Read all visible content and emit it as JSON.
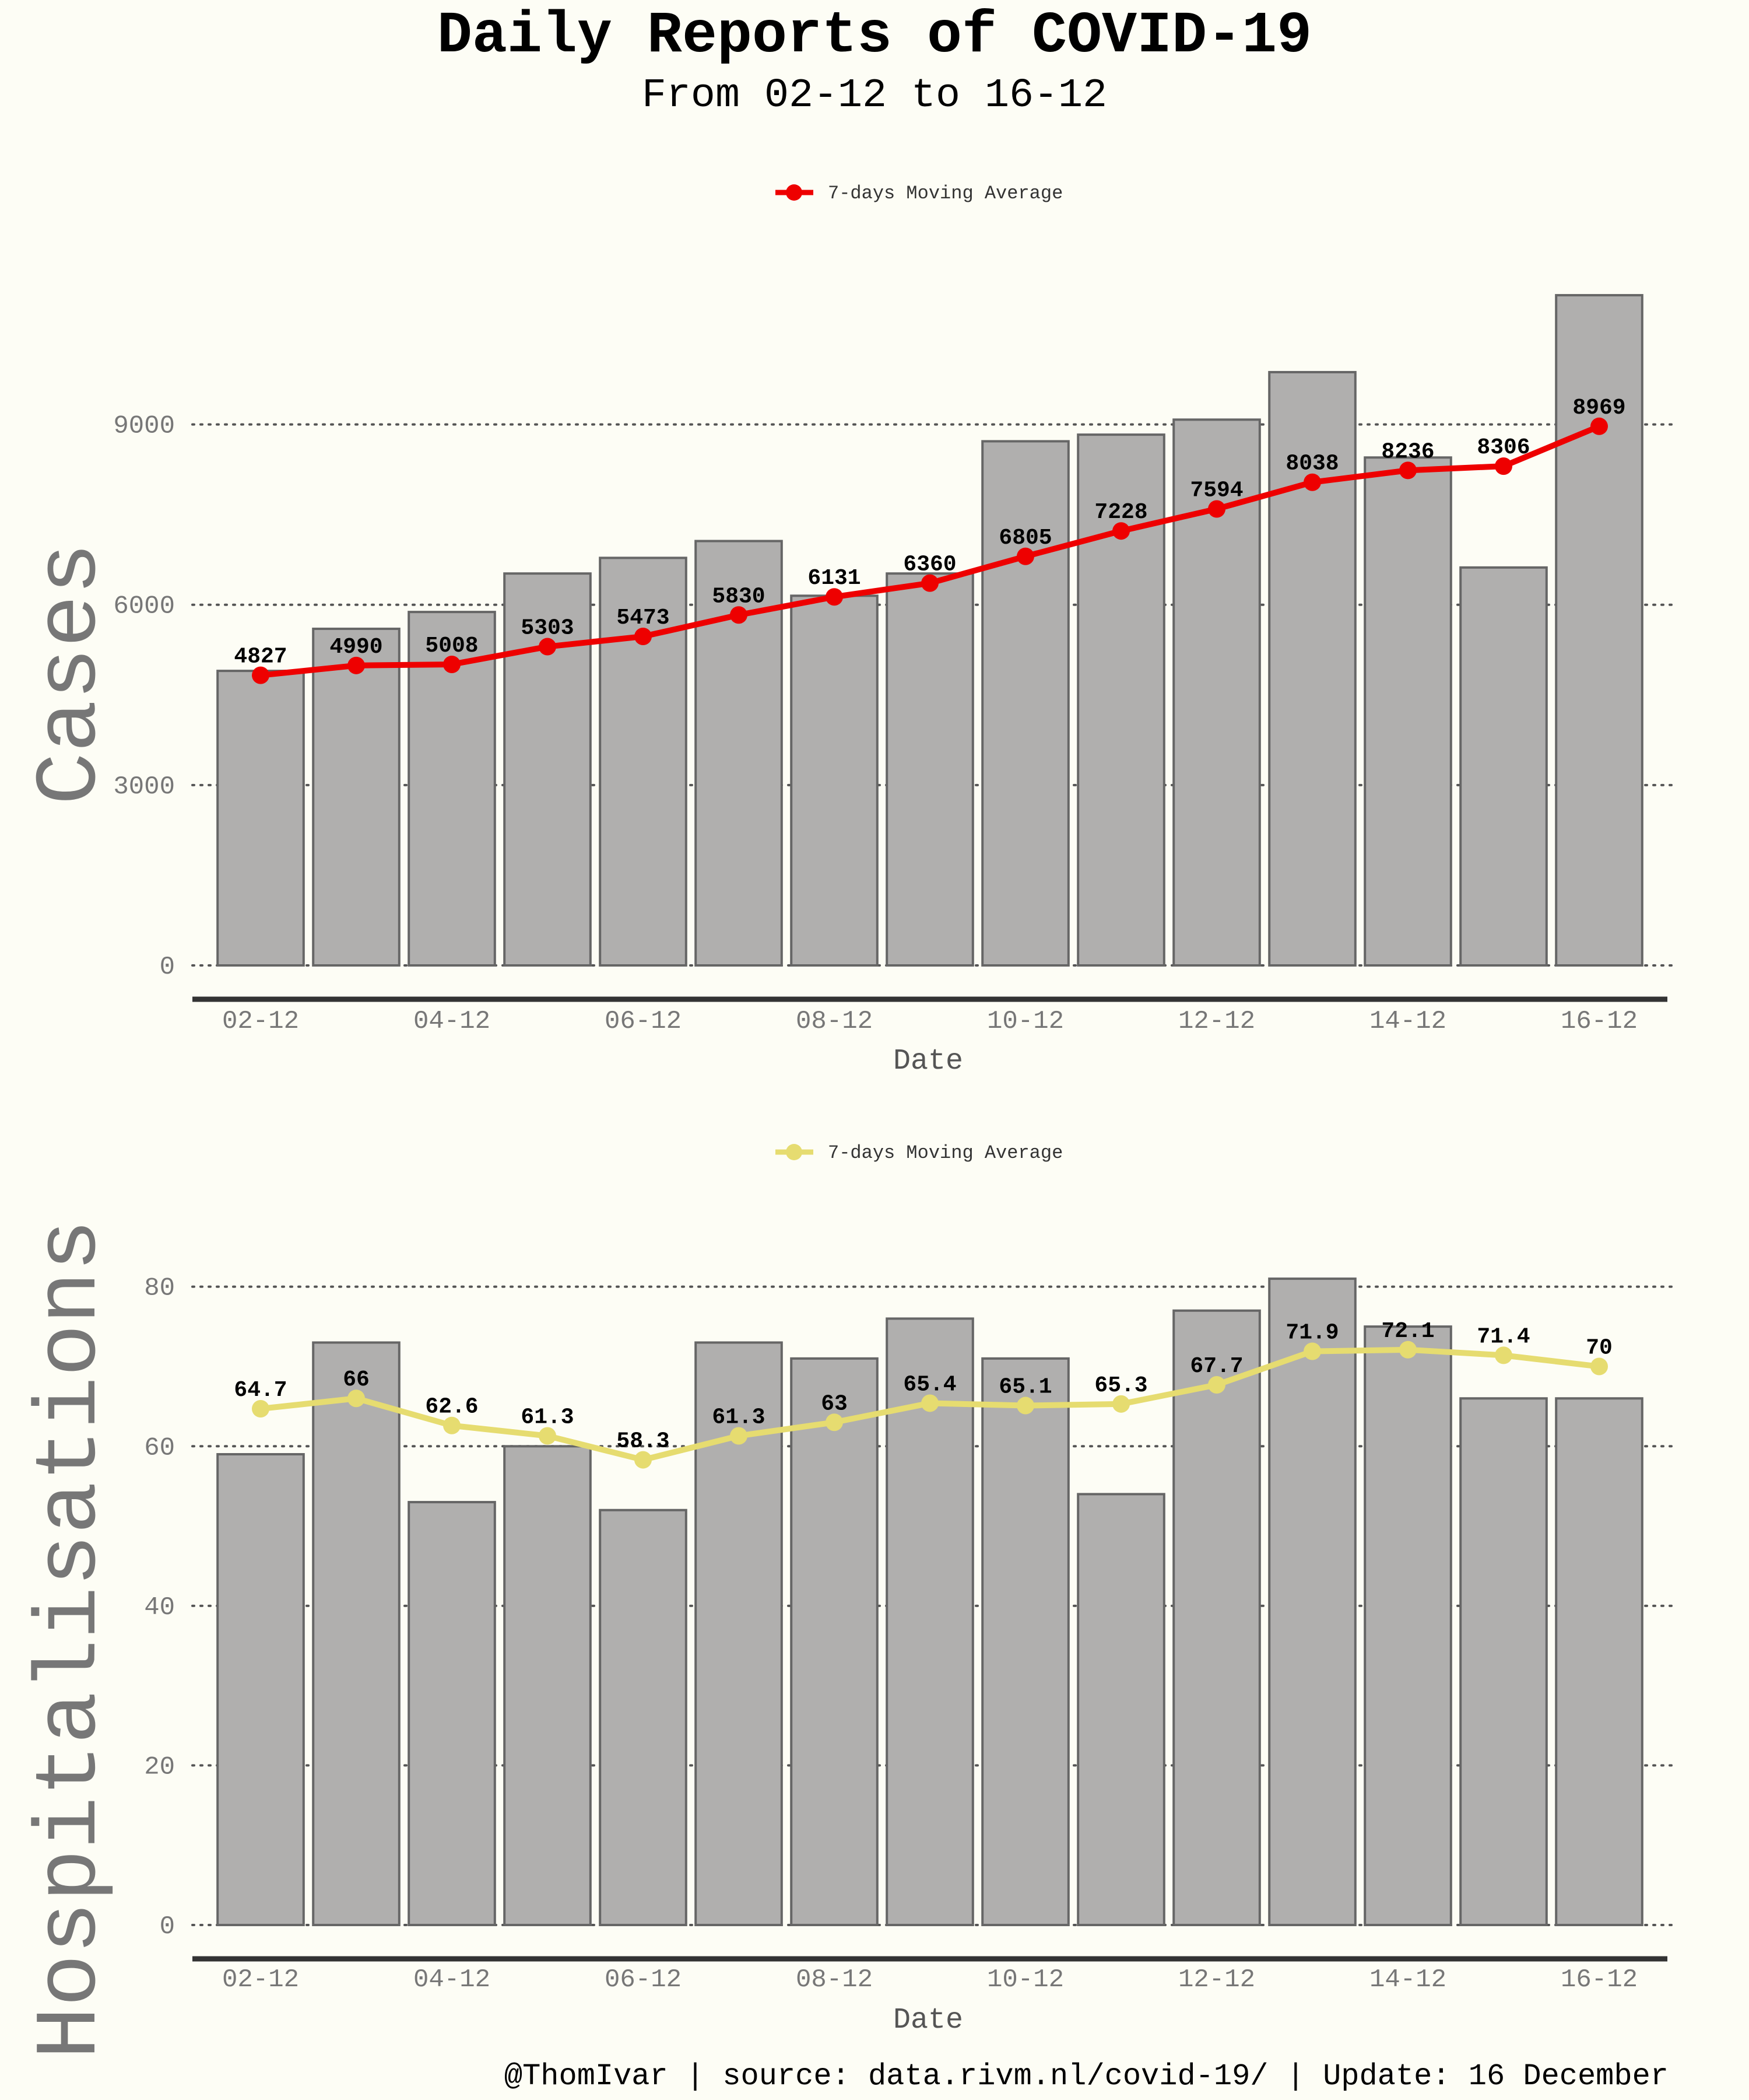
{
  "title": "Daily Reports of COVID-19",
  "subtitle": "From 02-12 to 16-12",
  "footer": "@ThomIvar | source: data.rivm.nl/covid-19/ | Update: 16 December",
  "colors": {
    "background": "#fdfdf5",
    "bar_fill": "#b0afae",
    "bar_edge": "#666666",
    "cases_line": "#ee0000",
    "hosp_line": "#e6dc70",
    "grid": "#555555",
    "axis": "#333333"
  },
  "chart_data": [
    {
      "type": "bar",
      "name": "cases",
      "ylabel": "Cases",
      "xlabel": "Date",
      "ylim": [
        0,
        11500
      ],
      "yticks": [
        0,
        3000,
        6000,
        9000
      ],
      "grid": "dotted horizontal",
      "legend_position": "top-center",
      "categories": [
        "02-12",
        "03-12",
        "04-12",
        "05-12",
        "06-12",
        "07-12",
        "08-12",
        "09-12",
        "10-12",
        "11-12",
        "12-12",
        "13-12",
        "14-12",
        "15-12",
        "16-12"
      ],
      "xtick_labels": [
        "02-12",
        "04-12",
        "06-12",
        "08-12",
        "10-12",
        "12-12",
        "14-12",
        "16-12"
      ],
      "values": [
        4900,
        5600,
        5880,
        6520,
        6780,
        7060,
        6150,
        6520,
        8720,
        8830,
        9080,
        9870,
        8450,
        6620,
        11150
      ],
      "moving_average": {
        "name": "7-days Moving Average",
        "values": [
          4827,
          4990,
          5008,
          5303,
          5473,
          5830,
          6131,
          6360,
          6805,
          7228,
          7594,
          8038,
          8236,
          8306,
          8969
        ],
        "labels": [
          "4827",
          "4990",
          "5008",
          "5303",
          "5473",
          "5830",
          "6131",
          "6360",
          "6805",
          "7228",
          "7594",
          "8038",
          "8236",
          "8306",
          "8969"
        ]
      }
    },
    {
      "type": "bar",
      "name": "hospitalisations",
      "ylabel": "Hospitalisations",
      "xlabel": "Date",
      "ylim": [
        0,
        87
      ],
      "yticks": [
        0,
        20,
        40,
        60,
        80
      ],
      "grid": "dotted horizontal",
      "legend_position": "top-center",
      "categories": [
        "02-12",
        "03-12",
        "04-12",
        "05-12",
        "06-12",
        "07-12",
        "08-12",
        "09-12",
        "10-12",
        "11-12",
        "12-12",
        "13-12",
        "14-12",
        "15-12",
        "16-12"
      ],
      "xtick_labels": [
        "02-12",
        "04-12",
        "06-12",
        "08-12",
        "10-12",
        "12-12",
        "14-12",
        "16-12"
      ],
      "values": [
        59,
        73,
        53,
        60,
        52,
        73,
        71,
        76,
        71,
        54,
        77,
        81,
        75,
        66,
        66
      ],
      "moving_average": {
        "name": "7-days Moving Average",
        "values": [
          64.7,
          66,
          62.6,
          61.3,
          58.3,
          61.3,
          63,
          65.4,
          65.1,
          65.3,
          67.7,
          71.9,
          72.1,
          71.4,
          70
        ],
        "labels": [
          "64.7",
          "66",
          "62.6",
          "61.3",
          "58.3",
          "61.3",
          "63",
          "65.4",
          "65.1",
          "65.3",
          "67.7",
          "71.9",
          "72.1",
          "71.4",
          "70"
        ]
      }
    }
  ]
}
